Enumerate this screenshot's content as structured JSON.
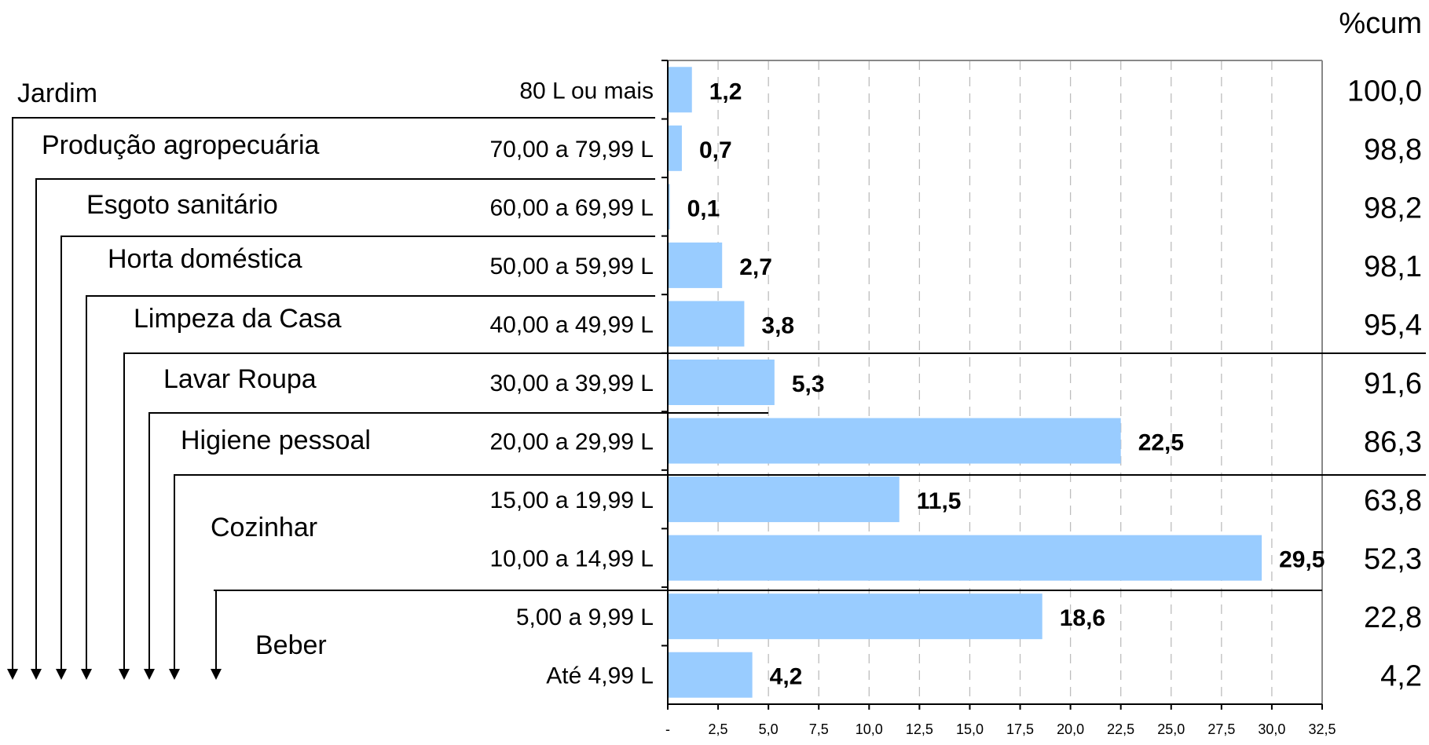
{
  "chart_data": {
    "type": "bar",
    "orientation": "horizontal",
    "categories": [
      "80 L ou mais",
      "70,00 a 79,99 L",
      "60,00 a 69,99 L",
      "50,00 a 59,99 L",
      "40,00 a 49,99 L",
      "30,00 a 39,99 L",
      "20,00 a 29,99 L",
      "15,00 a 19,99 L",
      "10,00 a 14,99 L",
      "5,00 a 9,99 L",
      "Até 4,99 L"
    ],
    "values": [
      1.2,
      0.7,
      0.1,
      2.7,
      3.8,
      5.3,
      22.5,
      11.5,
      29.5,
      18.6,
      4.2
    ],
    "value_labels": [
      "1,2",
      "0,7",
      "0,1",
      "2,7",
      "3,8",
      "5,3",
      "22,5",
      "11,5",
      "29,5",
      "18,6",
      "4,2"
    ],
    "cumulative_header": "%cum",
    "cumulative_labels": [
      "100,0",
      "98,8",
      "98,2",
      "98,1",
      "95,4",
      "91,6",
      "86,3",
      "63,8",
      "52,3",
      "22,8",
      "4,2"
    ],
    "cumulative": [
      100.0,
      98.8,
      98.2,
      98.1,
      95.4,
      91.6,
      86.3,
      63.8,
      52.3,
      22.8,
      4.2
    ],
    "xlim": [
      0,
      32.5
    ],
    "xticks": [
      "-",
      "2,5",
      "5,0",
      "7,5",
      "10,0",
      "12,5",
      "15,0",
      "17,5",
      "20,0",
      "22,5",
      "25,0",
      "27,5",
      "30,0",
      "32,5"
    ],
    "grid": true,
    "bar_color": "#99ccff",
    "uses": [
      "Jardim",
      "Produção agropecuária",
      "Esgoto sanitário",
      "Horta doméstica",
      "Limpeza da Casa",
      "Lavar Roupa",
      "Higiene pessoal",
      "Cozinhar",
      "Beber"
    ]
  }
}
